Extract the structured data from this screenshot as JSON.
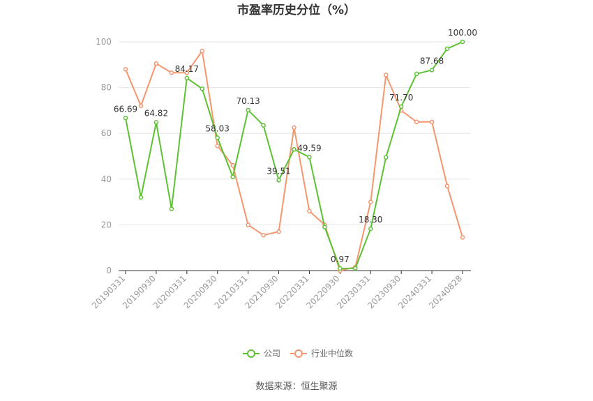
{
  "chart_data": {
    "type": "line",
    "title": "市盈率历史分位（%）",
    "source": "数据来源：恒生聚源",
    "x_tick_labels": [
      "20190331",
      "20190930",
      "20200331",
      "20200930",
      "20210331",
      "20210930",
      "20220331",
      "20220930",
      "20230331",
      "20230930",
      "20240331",
      "20240828"
    ],
    "y_ticks": [
      "0",
      "20",
      "40",
      "60",
      "80",
      "100"
    ],
    "ylim": [
      0,
      100
    ],
    "grid": true,
    "legend_position": "bottom-center",
    "series": [
      {
        "name": "公司",
        "color": "#5cc232",
        "values": [
          66.69,
          32.0,
          64.82,
          27.0,
          84.17,
          79.5,
          58.03,
          41.0,
          70.13,
          63.5,
          39.51,
          53.0,
          49.59,
          19.0,
          0.97,
          1.0,
          18.3,
          49.5,
          71.7,
          86.0,
          87.68,
          97.0,
          100.0
        ]
      },
      {
        "name": "行业中位数",
        "color": "#f5966e",
        "values": [
          88.0,
          72.0,
          90.5,
          86.5,
          86.5,
          96.0,
          54.5,
          46.0,
          20.0,
          15.5,
          17.0,
          62.5,
          26.0,
          20.0,
          0.0,
          1.5,
          30.0,
          85.5,
          70.0,
          65.0,
          65.0,
          37.0,
          14.5
        ]
      }
    ],
    "data_labels": [
      {
        "index": 0,
        "text": "66.69"
      },
      {
        "index": 2,
        "text": "64.82"
      },
      {
        "index": 4,
        "text": "84.17"
      },
      {
        "index": 6,
        "text": "58.03"
      },
      {
        "index": 8,
        "text": "70.13"
      },
      {
        "index": 10,
        "text": "39.51"
      },
      {
        "index": 12,
        "text": "49.59"
      },
      {
        "index": 14,
        "text": "0.97"
      },
      {
        "index": 16,
        "text": "18.30"
      },
      {
        "index": 18,
        "text": "71.70"
      },
      {
        "index": 20,
        "text": "87.68"
      },
      {
        "index": 22,
        "text": "100.00"
      }
    ]
  }
}
